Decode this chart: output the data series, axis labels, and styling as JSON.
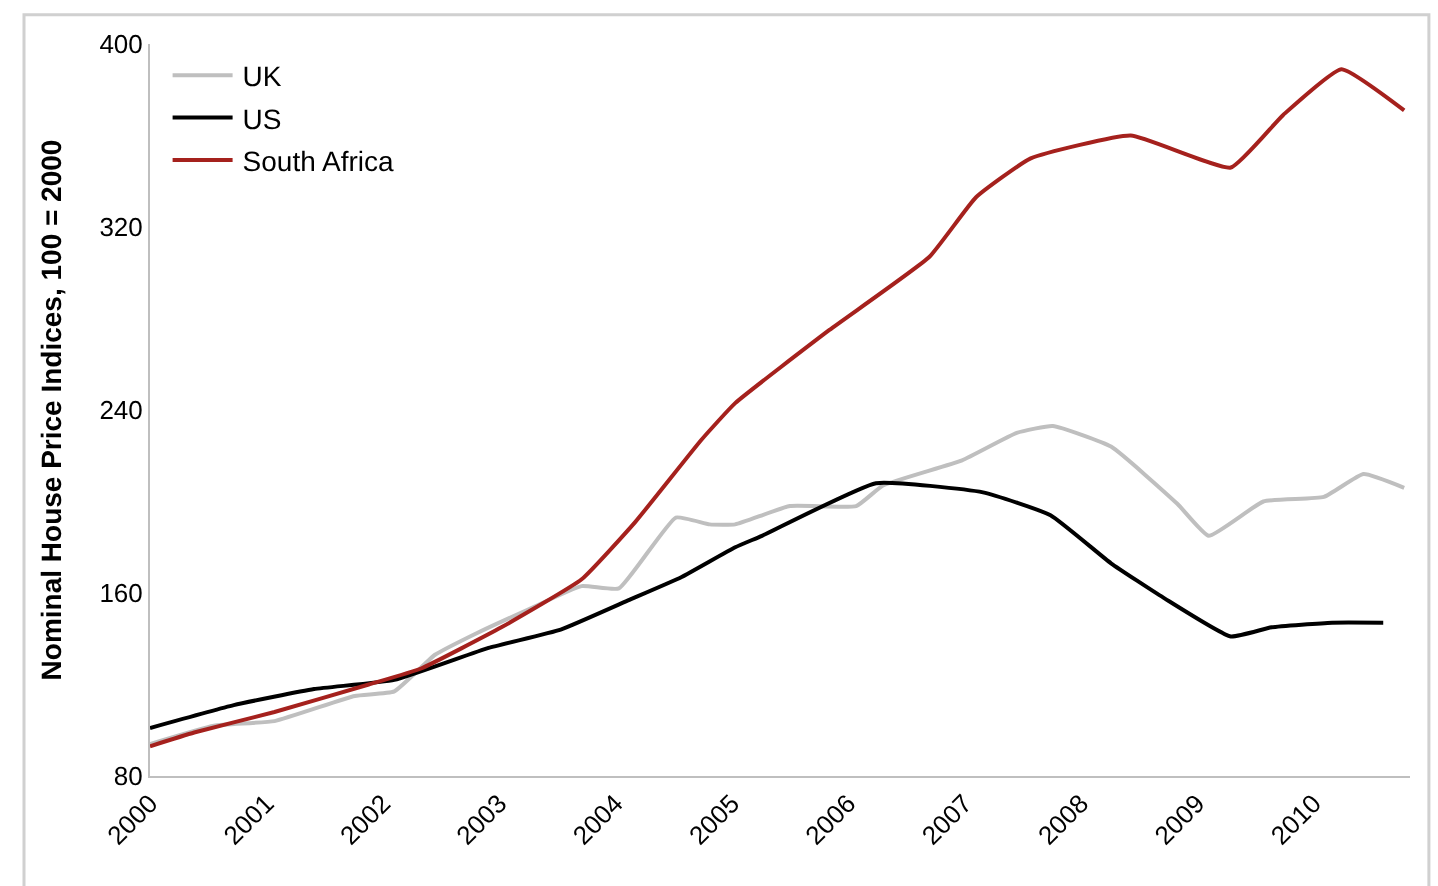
{
  "chart_data": {
    "type": "line",
    "ylabel": "Nominal House Price Indices, 100 = 2000",
    "xlim": [
      2000,
      2010.83
    ],
    "xticks": [
      2000,
      2001,
      2002,
      2003,
      2004,
      2005,
      2006,
      2007,
      2008,
      2009,
      2010
    ],
    "ylim": [
      80,
      400
    ],
    "yticks": [
      80,
      160,
      240,
      320,
      400
    ],
    "legend": "top left",
    "series": [
      {
        "name": "UK",
        "color": "#bfbfbf",
        "x": [
          2000,
          2000.55,
          2001.07,
          2001.76,
          2002.1,
          2002.45,
          2002.79,
          2003.26,
          2003.71,
          2004.03,
          2004.52,
          2004.81,
          2005.03,
          2005.5,
          2006.07,
          2006.3,
          2006.98,
          2007.45,
          2007.76,
          2008.26,
          2008.83,
          2009.1,
          2009.57,
          2010.09,
          2010.43,
          2010.78
        ],
        "values": [
          94,
          102,
          104,
          115,
          117,
          133,
          142,
          153,
          163,
          162,
          193,
          190,
          190,
          198,
          198,
          207,
          218,
          230,
          233,
          224,
          199,
          185,
          200,
          202,
          212,
          206
        ]
      },
      {
        "name": "US",
        "color": "#000000",
        "x": [
          2000,
          2000.72,
          2001.41,
          2002.1,
          2002.91,
          2003.53,
          2004.12,
          2004.57,
          2005.03,
          2005.26,
          2006.24,
          2007.16,
          2007.74,
          2008.26,
          2008.71,
          2009.29,
          2009.64,
          2010.16,
          2010.6
        ],
        "values": [
          101,
          111,
          118,
          122,
          136,
          144,
          157,
          167,
          180,
          185,
          208,
          204,
          194,
          173,
          158,
          141,
          145,
          147,
          147
        ]
      },
      {
        "name": "South Africa",
        "color": "#a5211d",
        "x": [
          2000,
          2000.38,
          2001.07,
          2001.88,
          2002.33,
          2003.02,
          2003.71,
          2004.17,
          2004.74,
          2005.03,
          2005.84,
          2006.7,
          2007.1,
          2007.57,
          2008.43,
          2009.29,
          2009.74,
          2010.24,
          2010.78
        ],
        "values": [
          93,
          99,
          108,
          120,
          127,
          145,
          166,
          191,
          227,
          243,
          275,
          307,
          333,
          350,
          360,
          346,
          369,
          389,
          371
        ]
      }
    ]
  }
}
